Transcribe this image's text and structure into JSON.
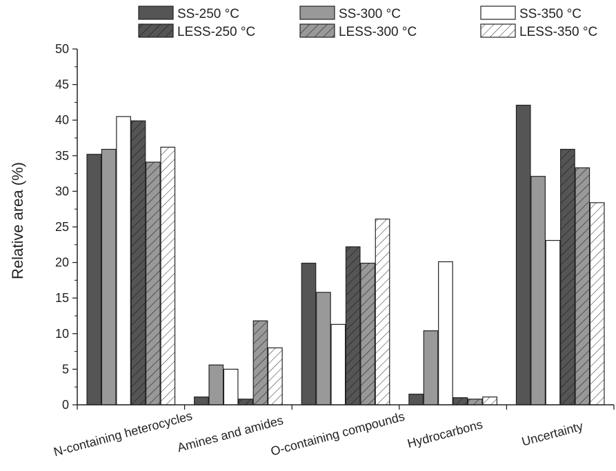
{
  "chart_data": {
    "type": "bar",
    "title": "",
    "xlabel": "",
    "ylabel": "Relative area (%)",
    "ylim": [
      0,
      50
    ],
    "yticks": [
      0,
      5,
      10,
      15,
      20,
      25,
      30,
      35,
      40,
      45,
      50
    ],
    "categories": [
      "N-containing heterocycles",
      "Amines and amides",
      "O-containing  compounds",
      "Hydrocarbons",
      "Uncertainty"
    ],
    "legend_position": "top",
    "series": [
      {
        "name": "SS-250 °C",
        "fill": "#555555",
        "hatch": false,
        "values": [
          35.2,
          1.1,
          19.9,
          1.5,
          42.1
        ]
      },
      {
        "name": "SS-300 °C",
        "fill": "#999999",
        "hatch": false,
        "values": [
          35.9,
          5.6,
          15.8,
          10.4,
          32.1
        ]
      },
      {
        "name": "SS-350 °C",
        "fill": "#ffffff",
        "hatch": false,
        "values": [
          40.5,
          5.0,
          11.3,
          20.1,
          23.1
        ]
      },
      {
        "name": "LESS-250 °C",
        "fill": "#555555",
        "hatch": true,
        "values": [
          39.9,
          0.8,
          22.2,
          1.0,
          35.9
        ]
      },
      {
        "name": "LESS-300 °C",
        "fill": "#999999",
        "hatch": true,
        "values": [
          34.1,
          11.8,
          19.9,
          0.8,
          33.3
        ]
      },
      {
        "name": "LESS-350 °C",
        "fill": "#ffffff",
        "hatch": true,
        "values": [
          36.2,
          8.0,
          26.1,
          1.1,
          28.4
        ]
      }
    ]
  }
}
